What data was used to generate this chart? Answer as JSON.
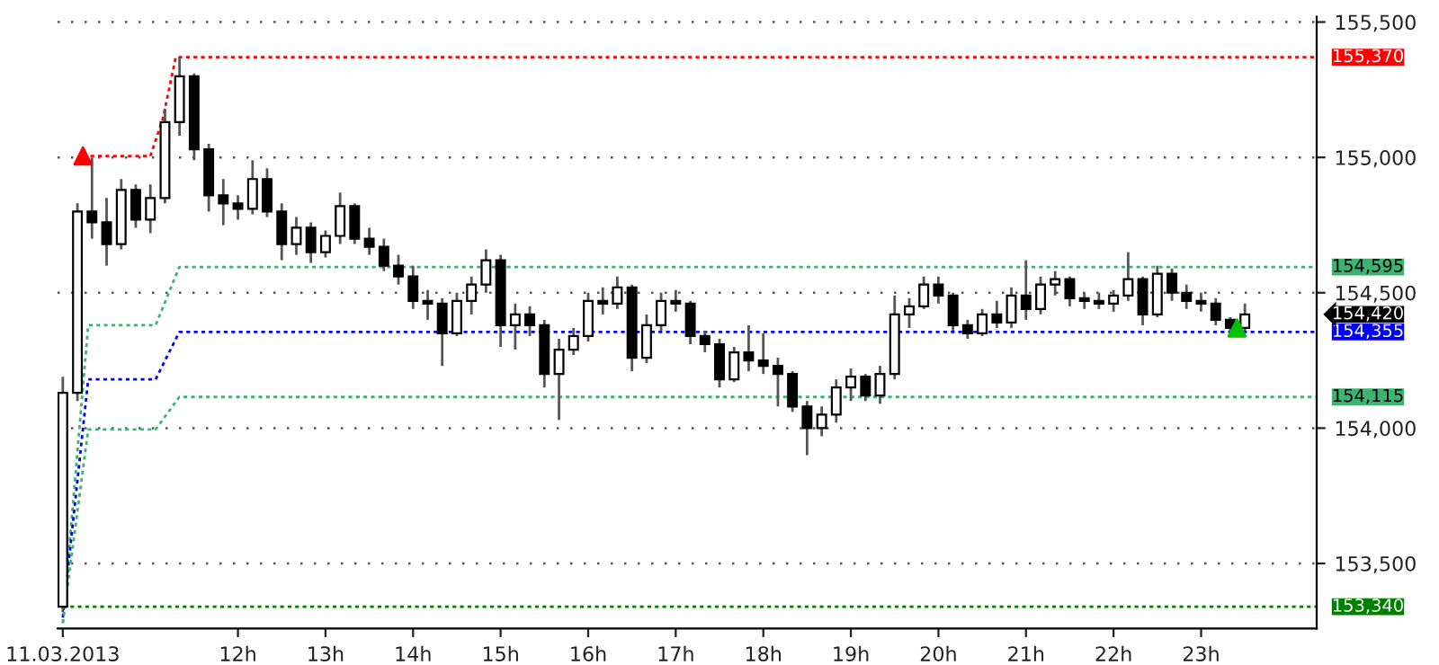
{
  "chart_data": {
    "type": "candlestick",
    "x": [
      10,
      10.167,
      10.333,
      10.5,
      10.667,
      10.833,
      11,
      11.167,
      11.333,
      11.5,
      11.667,
      11.833,
      12,
      12.167,
      12.333,
      12.5,
      12.667,
      12.833,
      13,
      13.167,
      13.333,
      13.5,
      13.667,
      13.833,
      14,
      14.167,
      14.333,
      14.5,
      14.667,
      14.833,
      15,
      15.167,
      15.333,
      15.5,
      15.667,
      15.833,
      16,
      16.167,
      16.333,
      16.5,
      16.667,
      16.833,
      17,
      17.167,
      17.333,
      17.5,
      17.667,
      17.833,
      18,
      18.167,
      18.333,
      18.5,
      18.667,
      18.833,
      19,
      19.167,
      19.333,
      19.5,
      19.667,
      19.833,
      20,
      20.167,
      20.333,
      20.5,
      20.667,
      20.833,
      21,
      21.167,
      21.333,
      21.5,
      21.667,
      21.833,
      22,
      22.167,
      22.333,
      22.5,
      22.667,
      22.833,
      23,
      23.167,
      23.333,
      23.5
    ],
    "ohlc": [
      [
        153340,
        154190,
        153320,
        154130
      ],
      [
        154130,
        154830,
        154100,
        154800
      ],
      [
        154800,
        155000,
        154700,
        154760
      ],
      [
        154760,
        154850,
        154600,
        154680
      ],
      [
        154680,
        154920,
        154660,
        154880
      ],
      [
        154880,
        154900,
        154740,
        154770
      ],
      [
        154770,
        154900,
        154720,
        154850
      ],
      [
        154850,
        155180,
        154830,
        155130
      ],
      [
        155130,
        155370,
        155080,
        155300
      ],
      [
        155300,
        155310,
        154990,
        155030
      ],
      [
        155030,
        155050,
        154800,
        154860
      ],
      [
        154860,
        154920,
        154750,
        154830
      ],
      [
        154830,
        154860,
        154770,
        154810
      ],
      [
        154810,
        154990,
        154790,
        154920
      ],
      [
        154920,
        154960,
        154780,
        154800
      ],
      [
        154800,
        154830,
        154620,
        154680
      ],
      [
        154680,
        154780,
        154640,
        154740
      ],
      [
        154740,
        154760,
        154610,
        154650
      ],
      [
        154650,
        154730,
        154630,
        154710
      ],
      [
        154710,
        154870,
        154680,
        154820
      ],
      [
        154820,
        154830,
        154680,
        154700
      ],
      [
        154700,
        154740,
        154640,
        154670
      ],
      [
        154670,
        154700,
        154580,
        154600
      ],
      [
        154600,
        154640,
        154530,
        154560
      ],
      [
        154560,
        154600,
        154440,
        154470
      ],
      [
        154470,
        154510,
        154400,
        154460
      ],
      [
        154460,
        154480,
        154230,
        154350
      ],
      [
        154350,
        154500,
        154340,
        154470
      ],
      [
        154470,
        154560,
        154420,
        154530
      ],
      [
        154530,
        154660,
        154500,
        154620
      ],
      [
        154620,
        154640,
        154300,
        154380
      ],
      [
        154380,
        154460,
        154290,
        154420
      ],
      [
        154420,
        154450,
        154340,
        154380
      ],
      [
        154380,
        154400,
        154150,
        154200
      ],
      [
        154200,
        154330,
        154030,
        154290
      ],
      [
        154290,
        154370,
        154270,
        154340
      ],
      [
        154340,
        154500,
        154320,
        154470
      ],
      [
        154470,
        154520,
        154420,
        154460
      ],
      [
        154460,
        154560,
        154440,
        154520
      ],
      [
        154520,
        154530,
        154210,
        154260
      ],
      [
        154260,
        154420,
        154240,
        154380
      ],
      [
        154380,
        154500,
        154360,
        154470
      ],
      [
        154470,
        154510,
        154430,
        154460
      ],
      [
        154460,
        154470,
        154310,
        154340
      ],
      [
        154340,
        154360,
        154280,
        154310
      ],
      [
        154310,
        154330,
        154150,
        154180
      ],
      [
        154180,
        154300,
        154170,
        154280
      ],
      [
        154280,
        154380,
        154210,
        154250
      ],
      [
        154250,
        154350,
        154200,
        154230
      ],
      [
        154230,
        154260,
        154080,
        154200
      ],
      [
        154200,
        154210,
        154060,
        154080
      ],
      [
        154080,
        154100,
        153900,
        154000
      ],
      [
        154000,
        154080,
        153970,
        154050
      ],
      [
        154050,
        154180,
        154020,
        154150
      ],
      [
        154150,
        154220,
        154100,
        154190
      ],
      [
        154190,
        154200,
        154100,
        154120
      ],
      [
        154120,
        154230,
        154090,
        154200
      ],
      [
        154200,
        154490,
        154180,
        154420
      ],
      [
        154420,
        154480,
        154370,
        154450
      ],
      [
        154450,
        154560,
        154440,
        154530
      ],
      [
        154530,
        154560,
        154460,
        154490
      ],
      [
        154490,
        154500,
        154360,
        154380
      ],
      [
        154380,
        154400,
        154330,
        154350
      ],
      [
        154350,
        154440,
        154340,
        154420
      ],
      [
        154420,
        154470,
        154370,
        154390
      ],
      [
        154390,
        154520,
        154370,
        154490
      ],
      [
        154490,
        154620,
        154400,
        154440
      ],
      [
        154440,
        154560,
        154420,
        154530
      ],
      [
        154530,
        154580,
        154490,
        154550
      ],
      [
        154550,
        154560,
        154450,
        154480
      ],
      [
        154480,
        154500,
        154440,
        154470
      ],
      [
        154470,
        154500,
        154440,
        154460
      ],
      [
        154460,
        154510,
        154430,
        154490
      ],
      [
        154490,
        154650,
        154470,
        154550
      ],
      [
        154550,
        154560,
        154380,
        154420
      ],
      [
        154420,
        154600,
        154410,
        154570
      ],
      [
        154570,
        154590,
        154470,
        154500
      ],
      [
        154500,
        154530,
        154440,
        154470
      ],
      [
        154470,
        154500,
        154430,
        154460
      ],
      [
        154460,
        154480,
        154380,
        154400
      ],
      [
        154400,
        154410,
        154340,
        154370
      ],
      [
        154370,
        154460,
        154360,
        154420
      ]
    ],
    "series": [
      {
        "type": "line",
        "color": "#ff0000",
        "line_style": "dotted",
        "x": [
          10.23,
          11.0,
          11.14,
          11.29,
          24.32
        ],
        "values": [
          155005,
          155005,
          155140,
          155370,
          155370
        ],
        "value_labels": [
          null,
          null,
          null,
          null,
          "155,370"
        ]
      },
      {
        "type": "line",
        "color": "#3cb371",
        "line_style": "dotted",
        "x": [
          10.0,
          10.29,
          11.06,
          11.33,
          24.32
        ],
        "values": [
          153280,
          154380,
          154380,
          154595,
          154595
        ],
        "value_labels": [
          null,
          null,
          null,
          null,
          "154,595"
        ]
      },
      {
        "type": "line",
        "color": "#0000ff",
        "line_style": "dotted",
        "x": [
          10.0,
          10.29,
          11.06,
          11.33,
          24.32
        ],
        "values": [
          153300,
          154180,
          154180,
          154355,
          154355
        ],
        "value_labels": [
          null,
          null,
          null,
          null,
          "154,355"
        ]
      },
      {
        "type": "line",
        "color": "#3cb371",
        "line_style": "dotted",
        "x": [
          10.0,
          10.29,
          11.06,
          11.33,
          24.32
        ],
        "values": [
          153280,
          153995,
          153995,
          154115,
          154115
        ],
        "value_labels": [
          null,
          null,
          null,
          null,
          "154,115"
        ]
      },
      {
        "type": "line",
        "color": "#008000",
        "line_style": "dotted",
        "x": [
          10.0,
          24.32
        ],
        "values": [
          153340,
          153340
        ],
        "value_labels": [
          null,
          "153,340"
        ]
      },
      {
        "type": "scatter",
        "color": "#ff0000",
        "marker": "triangle",
        "x": [
          10.23
        ],
        "values": [
          155005
        ]
      },
      {
        "type": "scatter",
        "color": "#00c000",
        "marker": "triangle",
        "x": [
          23.41
        ],
        "values": [
          154370
        ]
      }
    ],
    "annotations": [
      "154,420"
    ],
    "xlim": [
      9.94,
      24.32
    ],
    "ylim": [
      153260,
      155520
    ],
    "xticks": [
      {
        "value": 10,
        "label": "11.03.2013"
      },
      {
        "value": 12,
        "label": "12h"
      },
      {
        "value": 13,
        "label": "13h"
      },
      {
        "value": 14,
        "label": "14h"
      },
      {
        "value": 15,
        "label": "15h"
      },
      {
        "value": 16,
        "label": "16h"
      },
      {
        "value": 17,
        "label": "17h"
      },
      {
        "value": 18,
        "label": "18h"
      },
      {
        "value": 19,
        "label": "19h"
      },
      {
        "value": 20,
        "label": "20h"
      },
      {
        "value": 21,
        "label": "21h"
      },
      {
        "value": 22,
        "label": "22h"
      },
      {
        "value": 23,
        "label": "23h"
      }
    ],
    "yticks": [
      {
        "value": 153500,
        "label": "153,500"
      },
      {
        "value": 154000,
        "label": "154,000"
      },
      {
        "value": 154500,
        "label": "154,500"
      },
      {
        "value": 155000,
        "label": "155,000"
      },
      {
        "value": 155500,
        "label": "155,500"
      }
    ],
    "grid": "y"
  }
}
